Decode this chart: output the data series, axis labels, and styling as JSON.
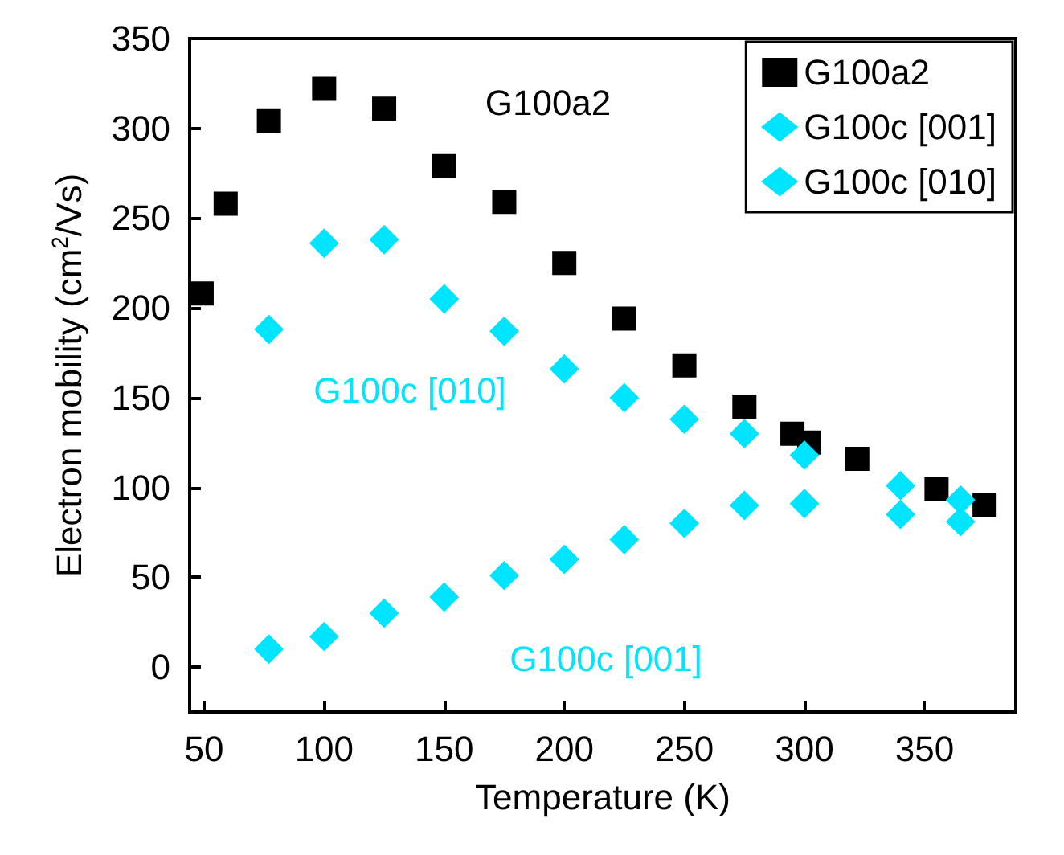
{
  "chart_data": {
    "type": "scatter",
    "xlabel": "Temperature (K)",
    "ylabel": "Electron mobility (cm$^{2}$/Vs)",
    "xlim": [
      44,
      388
    ],
    "xticks": [
      50,
      100,
      150,
      200,
      250,
      300,
      350
    ],
    "ylim": [
      -25,
      350
    ],
    "yticks": [
      0,
      50,
      100,
      150,
      200,
      250,
      300,
      350
    ],
    "grid": false,
    "legend": "top right",
    "series": [
      {
        "name": "G100a2",
        "color": "#000000",
        "marker": "square",
        "x": [
          49,
          59,
          77,
          100,
          125,
          150,
          175,
          200,
          225,
          250,
          275,
          295,
          302,
          322,
          355,
          375
        ],
        "values": [
          208,
          258,
          304,
          322,
          311,
          279,
          259,
          225,
          194,
          168,
          145,
          130,
          125,
          116,
          99,
          90
        ]
      },
      {
        "name": "G100c [001]",
        "color": "#00e5ff",
        "marker": "diamond",
        "x": [
          77,
          100,
          125,
          150,
          175,
          200,
          225,
          250,
          275,
          300,
          340,
          365
        ],
        "values": [
          10,
          17,
          30,
          39,
          51,
          60,
          71,
          80,
          90,
          91,
          85,
          81
        ]
      },
      {
        "name": "G100c [010]",
        "color": "#00e5ff",
        "marker": "diamond",
        "x": [
          77,
          100,
          125,
          150,
          175,
          200,
          225,
          250,
          275,
          300,
          340,
          365
        ],
        "values": [
          188,
          236,
          238,
          205,
          187,
          166,
          150,
          138,
          130,
          118,
          101,
          93
        ]
      }
    ],
    "annotations": [
      "G100a2",
      "G100c [001]",
      "G100c [010]"
    ]
  }
}
